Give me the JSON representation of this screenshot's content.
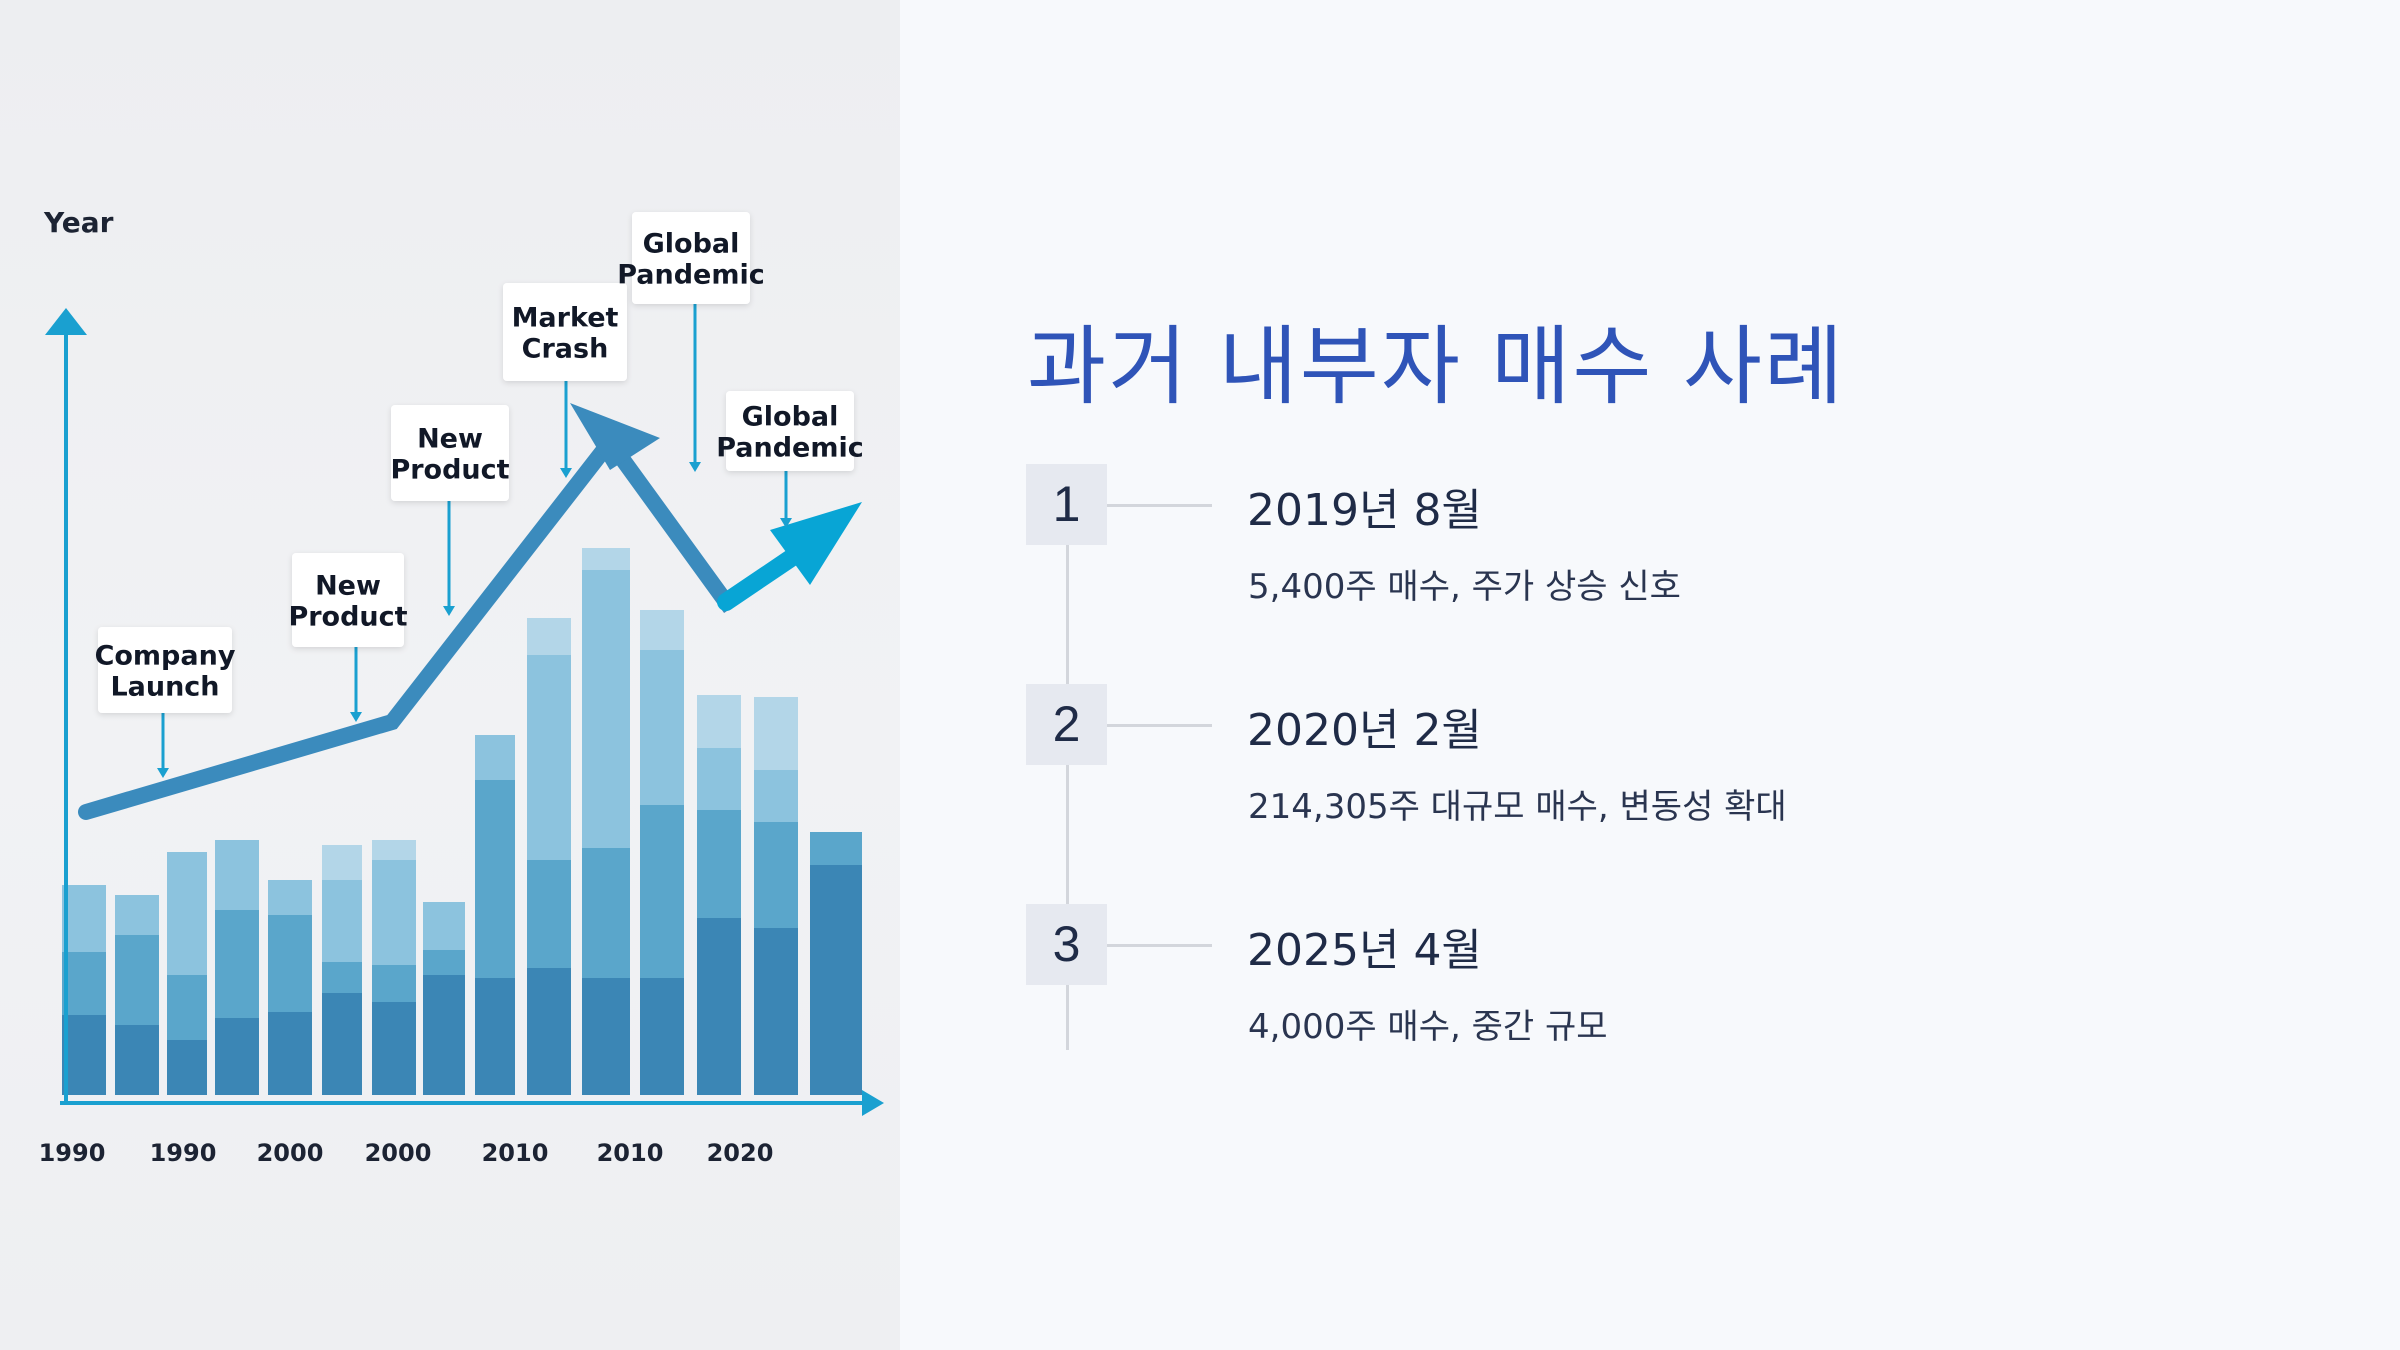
{
  "slide": {
    "title": "과거 내부자 매수 사례"
  },
  "timeline": [
    {
      "number": "1",
      "date": "2019년 8월",
      "description": "5,400주 매수, 주가 상승 신호"
    },
    {
      "number": "2",
      "date": "2020년 2월",
      "description": "214,305주 대규모 매수, 변동성 확대"
    },
    {
      "number": "3",
      "date": "2025년 4월",
      "description": "4,000주 매수, 중간 규모"
    }
  ],
  "illustration": {
    "y_label": "Year",
    "x_labels": [
      "1990",
      "1990",
      "2000",
      "2000",
      "2010",
      "2010",
      "2020"
    ],
    "annotations": [
      {
        "lines": [
          "Company",
          "Launch"
        ]
      },
      {
        "lines": [
          "New",
          "Product"
        ]
      },
      {
        "lines": [
          "New",
          "Product"
        ]
      },
      {
        "lines": [
          "Market",
          "Crash"
        ]
      },
      {
        "lines": [
          "Global",
          "Pandemic"
        ]
      },
      {
        "lines": [
          "Global",
          "Pandemic"
        ]
      }
    ],
    "colors": {
      "axis": "#1aa0d0",
      "trend": "#3b8bbd",
      "trend_end": "#08a5d5",
      "bar_dark": "#3b86b5",
      "bar_mid": "#5aa6cb",
      "bar_light": "#8cc3de",
      "bar_pale": "#b3d6e8"
    }
  }
}
